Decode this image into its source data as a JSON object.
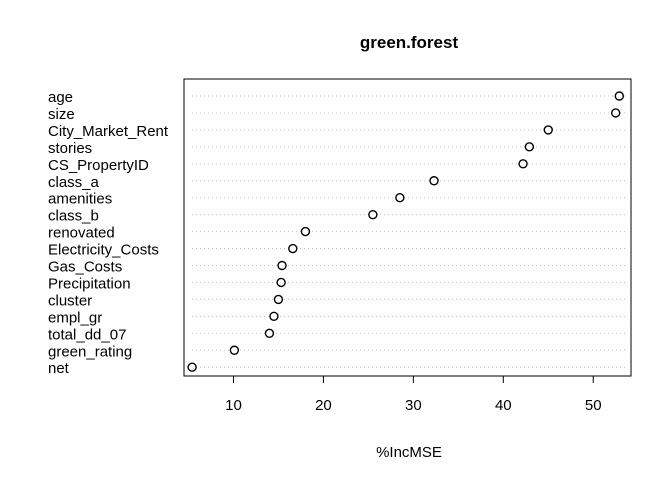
{
  "chart_data": {
    "type": "scatter",
    "title": "green.forest",
    "xlabel": "%IncMSE",
    "ylabel": "",
    "xlim": [
      4.5,
      54.2
    ],
    "x_ticks": [
      10,
      20,
      30,
      40,
      50
    ],
    "grid": "dotted horizontal guide per variable",
    "legend": "none",
    "categories": [
      "age",
      "size",
      "City_Market_Rent",
      "stories",
      "CS_PropertyID",
      "class_a",
      "amenities",
      "class_b",
      "renovated",
      "Electricity_Costs",
      "Gas_Costs",
      "Precipitation",
      "cluster",
      "empl_gr",
      "total_dd_07",
      "green_rating",
      "net"
    ],
    "values": [
      52.9,
      52.5,
      45.0,
      42.9,
      42.2,
      32.3,
      28.5,
      25.5,
      18.0,
      16.6,
      15.4,
      15.3,
      15.0,
      14.5,
      14.0,
      10.1,
      5.4
    ],
    "colors": {
      "axis": "#000000",
      "grid": "#bdbdbd",
      "point_stroke": "#000000",
      "point_fill": "#ffffff"
    }
  }
}
